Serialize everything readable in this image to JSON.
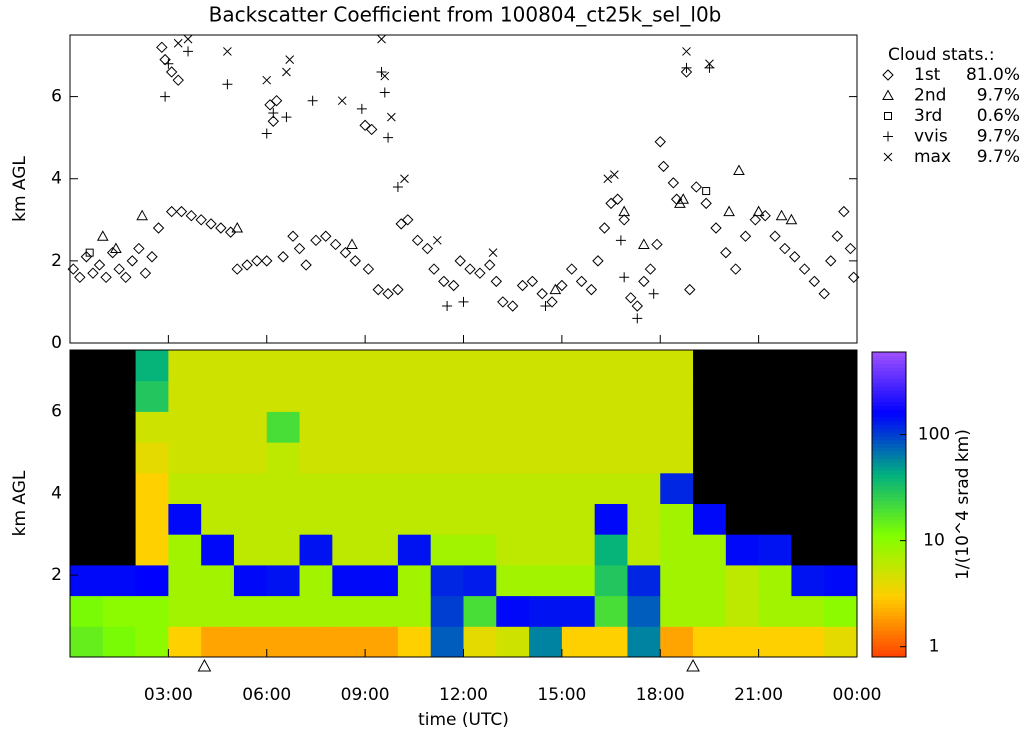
{
  "chart_data": [
    {
      "type": "scatter",
      "title": "Backscatter Coefficient from 100804_ct25k_sel_l0b",
      "y_label": "km AGL",
      "xlim": [
        0,
        24
      ],
      "xticks": [
        3,
        6,
        9,
        12,
        15,
        18,
        21,
        24
      ],
      "ylim": [
        0,
        7.5
      ],
      "yticks": [
        0,
        2,
        4,
        6
      ],
      "legend_title": "Cloud stats.:",
      "legend": "right",
      "color": "#000000",
      "series": [
        {
          "name": "1st",
          "marker": "diamond",
          "share": 81.0,
          "share_label": "81.0%",
          "x": [
            0.1,
            0.3,
            0.5,
            0.7,
            0.9,
            1.1,
            1.3,
            1.5,
            1.7,
            1.9,
            2.1,
            2.3,
            2.5,
            2.7,
            2.8,
            2.9,
            3.1,
            3.3,
            3.1,
            3.4,
            3.7,
            4.0,
            4.3,
            4.6,
            4.9,
            5.1,
            5.4,
            5.7,
            6.0,
            6.1,
            6.2,
            6.3,
            6.5,
            6.8,
            7.0,
            7.2,
            7.5,
            7.8,
            8.1,
            8.4,
            8.7,
            9.0,
            9.2,
            9.1,
            9.4,
            9.7,
            10.0,
            10.1,
            10.3,
            10.6,
            10.9,
            11.1,
            11.4,
            11.7,
            11.9,
            12.2,
            12.5,
            12.8,
            13.0,
            13.2,
            13.5,
            13.8,
            14.1,
            14.4,
            14.7,
            15.0,
            15.3,
            15.6,
            15.9,
            16.1,
            16.3,
            16.5,
            16.7,
            16.9,
            17.1,
            17.3,
            17.5,
            17.7,
            17.9,
            18.0,
            18.1,
            18.4,
            18.5,
            18.8,
            18.9,
            19.1,
            19.4,
            19.7,
            20.0,
            20.3,
            20.6,
            20.9,
            21.2,
            21.5,
            21.8,
            22.1,
            22.4,
            22.7,
            23.0,
            23.2,
            23.4,
            23.6,
            23.8,
            23.9
          ],
          "values": [
            1.8,
            1.6,
            2.1,
            1.7,
            1.9,
            1.6,
            2.2,
            1.8,
            1.6,
            2.0,
            2.3,
            1.7,
            2.1,
            2.8,
            7.2,
            6.9,
            6.6,
            6.4,
            3.2,
            3.2,
            3.1,
            3.0,
            2.9,
            2.8,
            2.7,
            1.8,
            1.9,
            2.0,
            2.0,
            5.8,
            5.4,
            5.9,
            2.1,
            2.6,
            2.3,
            1.9,
            2.5,
            2.6,
            2.4,
            2.2,
            2.0,
            5.3,
            5.2,
            1.8,
            1.3,
            1.2,
            1.3,
            2.9,
            3.0,
            2.5,
            2.3,
            1.8,
            1.5,
            1.4,
            2.0,
            1.8,
            1.7,
            1.9,
            1.5,
            1.0,
            0.9,
            1.4,
            1.5,
            1.2,
            1.0,
            1.4,
            1.8,
            1.5,
            1.3,
            2.0,
            2.8,
            3.4,
            3.5,
            3.0,
            1.1,
            0.9,
            1.5,
            1.8,
            2.4,
            4.9,
            4.3,
            3.9,
            3.5,
            6.6,
            1.3,
            3.8,
            3.4,
            2.8,
            2.2,
            1.8,
            2.6,
            3.0,
            3.1,
            2.6,
            2.3,
            2.1,
            1.8,
            1.5,
            1.2,
            2.0,
            2.6,
            3.2,
            2.3,
            1.6
          ]
        },
        {
          "name": "2nd",
          "marker": "triangle",
          "share": 9.7,
          "share_label": "9.7%",
          "x": [
            1.0,
            1.4,
            2.2,
            5.1,
            8.6,
            14.8,
            16.9,
            17.5,
            18.6,
            18.7,
            20.1,
            20.4,
            21.0,
            21.7,
            22.0
          ],
          "values": [
            2.6,
            2.3,
            3.1,
            2.8,
            2.4,
            1.3,
            3.2,
            2.4,
            3.4,
            3.5,
            3.2,
            4.2,
            3.2,
            3.1,
            3.0
          ]
        },
        {
          "name": "3rd",
          "marker": "square",
          "share": 0.6,
          "share_label": "0.6%",
          "x": [
            0.6,
            19.4
          ],
          "values": [
            2.2,
            3.7
          ]
        },
        {
          "name": "vvis",
          "marker": "plus",
          "share": 9.7,
          "share_label": "9.7%",
          "x": [
            2.9,
            3.0,
            3.6,
            4.8,
            6.0,
            6.2,
            6.6,
            7.4,
            9.6,
            9.7,
            9.5,
            11.5,
            12.0,
            14.5,
            16.8,
            17.3,
            17.8,
            18.8,
            19.5,
            10.0,
            8.9,
            16.9
          ],
          "values": [
            6.0,
            6.8,
            7.1,
            6.3,
            5.1,
            5.6,
            5.5,
            5.9,
            6.1,
            5.0,
            6.6,
            0.9,
            1.0,
            0.9,
            2.5,
            0.6,
            1.2,
            6.7,
            6.7,
            3.8,
            5.7,
            1.6
          ]
        },
        {
          "name": "max",
          "marker": "cross",
          "share": 9.7,
          "share_label": "9.7%",
          "x": [
            3.3,
            3.6,
            4.8,
            6.0,
            6.6,
            6.7,
            9.5,
            9.6,
            9.8,
            10.2,
            16.4,
            16.6,
            18.8,
            19.5,
            12.9,
            8.3,
            11.2
          ],
          "values": [
            7.3,
            7.4,
            7.1,
            6.4,
            6.6,
            6.9,
            7.4,
            6.5,
            5.5,
            4.0,
            4.0,
            4.1,
            7.1,
            6.8,
            2.2,
            5.9,
            2.5
          ]
        }
      ]
    },
    {
      "type": "heatmap",
      "x_label": "time (UTC)",
      "y_label": "km AGL",
      "xlim": [
        0,
        24
      ],
      "xticks": [
        {
          "value": 3,
          "label": "03:00"
        },
        {
          "value": 6,
          "label": "06:00"
        },
        {
          "value": 9,
          "label": "09:00"
        },
        {
          "value": 12,
          "label": "12:00"
        },
        {
          "value": 15,
          "label": "15:00"
        },
        {
          "value": 18,
          "label": "18:00"
        },
        {
          "value": 21,
          "label": "21:00"
        },
        {
          "value": 24,
          "label": "00:00"
        }
      ],
      "ylim": [
        0,
        7.5
      ],
      "yticks": [
        2,
        4,
        6
      ],
      "x_markers": [
        4.1,
        19.0
      ],
      "x": [
        0.5,
        1.5,
        2.5,
        3.5,
        4.5,
        5.5,
        6.5,
        7.5,
        8.5,
        9.5,
        10.5,
        11.5,
        12.5,
        13.5,
        14.5,
        15.5,
        16.5,
        17.5,
        18.5,
        19.5,
        20.5,
        21.5,
        22.5,
        23.5
      ],
      "y": [
        0.375,
        1.125,
        1.875,
        2.625,
        3.375,
        4.125,
        4.875,
        5.625,
        6.375,
        7.125
      ],
      "z": [
        [
          15,
          12,
          10,
          3,
          2,
          2,
          2,
          2,
          2,
          2,
          3,
          80,
          4,
          5,
          60,
          3,
          3,
          60,
          2,
          3,
          3,
          3,
          3,
          4
        ],
        [
          12,
          10,
          10,
          8,
          8,
          8,
          8,
          8,
          8,
          8,
          8,
          100,
          20,
          150,
          140,
          140,
          20,
          80,
          8,
          8,
          6,
          8,
          8,
          10
        ],
        [
          150,
          150,
          160,
          8,
          8,
          150,
          140,
          8,
          150,
          150,
          8,
          120,
          130,
          8,
          8,
          8,
          30,
          120,
          8,
          8,
          6,
          8,
          140,
          150
        ],
        [
          0,
          0,
          3,
          8,
          150,
          6,
          6,
          140,
          6,
          6,
          140,
          8,
          8,
          6,
          6,
          6,
          40,
          6,
          8,
          8,
          150,
          140,
          0,
          0
        ],
        [
          0,
          0,
          3,
          150,
          6,
          6,
          6,
          6,
          6,
          6,
          6,
          6,
          6,
          6,
          6,
          6,
          150,
          6,
          8,
          150,
          0,
          0,
          0,
          0
        ],
        [
          0,
          0,
          3,
          6,
          6,
          6,
          6,
          6,
          6,
          6,
          6,
          6,
          6,
          6,
          6,
          6,
          6,
          6,
          120,
          0,
          0,
          0,
          0,
          0
        ],
        [
          0,
          0,
          4,
          5,
          5,
          5,
          6,
          5,
          5,
          5,
          5,
          5,
          5,
          5,
          5,
          5,
          5,
          5,
          5,
          0,
          0,
          0,
          0,
          0
        ],
        [
          0,
          0,
          5,
          5,
          5,
          5,
          20,
          5,
          5,
          5,
          5,
          5,
          5,
          5,
          5,
          5,
          5,
          5,
          5,
          0,
          0,
          0,
          0,
          0
        ],
        [
          0,
          0,
          30,
          5,
          5,
          5,
          5,
          5,
          5,
          5,
          5,
          5,
          5,
          5,
          5,
          5,
          5,
          5,
          5,
          0,
          0,
          0,
          0,
          0
        ],
        [
          0,
          0,
          40,
          5,
          5,
          5,
          5,
          5,
          5,
          5,
          5,
          5,
          5,
          5,
          5,
          5,
          5,
          5,
          5,
          0,
          0,
          0,
          0,
          0
        ]
      ],
      "clim": [
        0.8,
        600
      ],
      "clog": true,
      "cticks": [
        1,
        10,
        100
      ],
      "colorbar_label": "1/(10^4 srad km)",
      "colorscale": [
        "#ff4000",
        "#ffd000",
        "#80ff00",
        "#00b080",
        "#0000ff",
        "#a050ff"
      ],
      "under_color": "#000000"
    }
  ]
}
